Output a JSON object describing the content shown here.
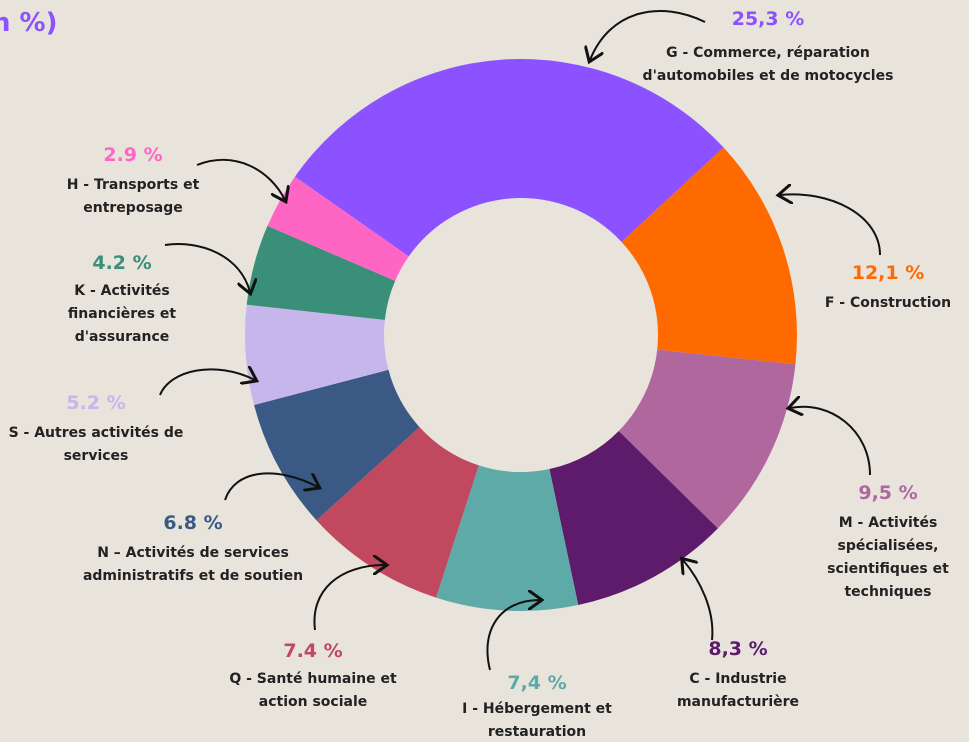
{
  "chart_data": {
    "type": "donut",
    "title": "n %)",
    "categories": [
      "G - Commerce, réparation d'automobiles et de motocycles",
      "F - Construction",
      "M - Activités spécialisées, scientifiques et techniques",
      "C - Industrie manufacturière",
      "I - Hébergement et restauration",
      "Q - Santé humaine et action sociale",
      "N – Activités de services administratifs et de soutien",
      "S - Autres activités de services",
      "K - Activités financières et d'assurance",
      "H - Transports et entreposage"
    ],
    "values": [
      25.3,
      12.1,
      9.5,
      8.3,
      7.4,
      7.4,
      6.8,
      5.2,
      4.2,
      2.9
    ],
    "value_labels": [
      "25,3 %",
      "12,1 %",
      "9,5 %",
      "8,3 %",
      "7,4 %",
      "7.4 %",
      "6.8 %",
      "5.2 %",
      "4.2 %",
      "2.9 %"
    ],
    "colors": [
      "#8c52ff",
      "#ff6a00",
      "#b0679e",
      "#5e1a6b",
      "#5eaaa8",
      "#c0485f",
      "#3a5a85",
      "#c7b6ec",
      "#3a8f78",
      "#ff66c4"
    ]
  }
}
